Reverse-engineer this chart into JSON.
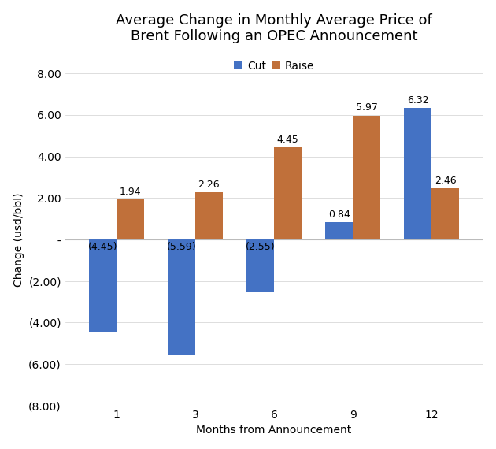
{
  "title_line1": "Average Change in Monthly Average Price of",
  "title_line2": "Brent Following an OPEC Announcement",
  "xlabel": "Months from Announcement",
  "ylabel": "Change (usd/bbl)",
  "categories": [
    1,
    3,
    6,
    9,
    12
  ],
  "cut_values": [
    -4.45,
    -5.59,
    -2.55,
    0.84,
    6.32
  ],
  "raise_values": [
    1.94,
    2.26,
    4.45,
    5.97,
    2.46
  ],
  "cut_color": "#4472C4",
  "raise_color": "#C0703A",
  "legend_labels": [
    "Cut",
    "Raise"
  ],
  "ylim": [
    -8.0,
    8.0
  ],
  "yticks": [
    -8.0,
    -6.0,
    -4.0,
    -2.0,
    0.0,
    2.0,
    4.0,
    6.0,
    8.0
  ],
  "bar_width": 0.35,
  "background_color": "#FFFFFF",
  "grid_color": "#D0D0D0",
  "title_fontsize": 13,
  "label_fontsize": 10,
  "tick_fontsize": 10,
  "annotation_fontsize": 9
}
